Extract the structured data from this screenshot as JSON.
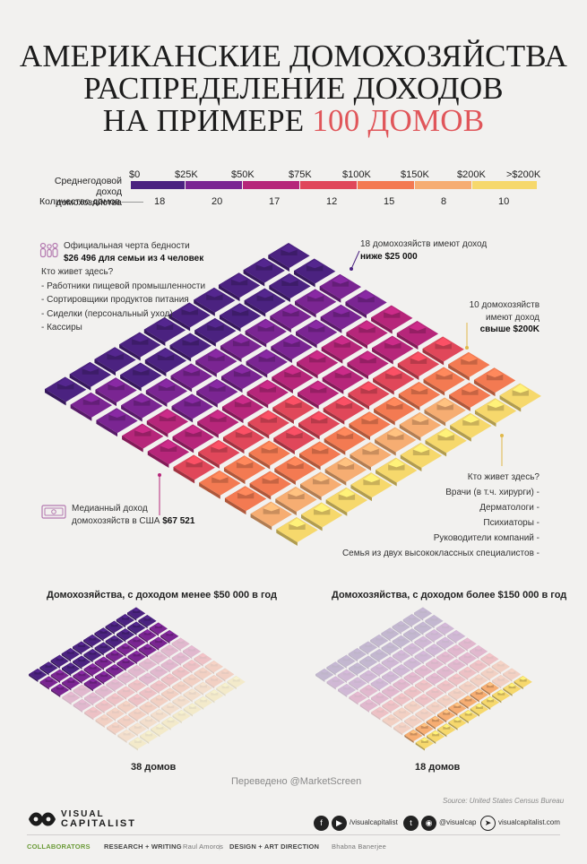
{
  "title": {
    "line1": "АМЕРИКАНСКИЕ ДОМОХОЗЯЙСТВА",
    "line2": "РАСПРЕДЕЛЕНИЕ ДОХОДОВ",
    "line3_prefix": "НА ПРИМЕРЕ",
    "line3_accent": "100 ДОМОВ"
  },
  "legend": {
    "income_label_1": "Среднегодовой доход",
    "income_label_2": "домохозяйства",
    "count_label": "Количество домов",
    "ticks": [
      "$0",
      "$25K",
      "$50K",
      "$75K",
      "$100K",
      "$150K",
      "$200K",
      ">$200K"
    ],
    "counts": [
      "18",
      "20",
      "17",
      "12",
      "15",
      "8",
      "10"
    ],
    "colors": [
      "#4b2280",
      "#7a2592",
      "#b6267a",
      "#e0475a",
      "#f37a52",
      "#f6ad72",
      "#f6d86c"
    ]
  },
  "chart_data": {
    "type": "table",
    "categories": [
      "$0–$25K",
      "$25K–$50K",
      "$50K–$75K",
      "$75K–$100K",
      "$100K–$150K",
      "$150K–$200K",
      ">$200K"
    ],
    "values": [
      18,
      20,
      17,
      12,
      15,
      8,
      10
    ]
  },
  "notes": {
    "poverty_line": "Официальная черта бедности",
    "poverty_value": "$26 496 для семьи из 4 человек",
    "who_low_title": "Кто живет здесь?",
    "who_low": [
      "- Работники пищевой промышленности",
      "- Сортировщики продуктов питания",
      "- Сиделки (персональный уход)",
      "- Кассиры"
    ],
    "below25_text": "18 домохозяйств имеют доход",
    "below25_bold": "ниже $25 000",
    "above200_text_1": "10 домохозяйств",
    "above200_text_2": "имеют доход",
    "above200_bold": "свыше $200K",
    "who_high_title": "Кто живет здесь?",
    "who_high": [
      "Врачи (в т.ч. хирурги) -",
      "Дерматологи -",
      "Психиаторы -",
      "Руководители компаний -",
      "Семья из двух высококлассных специалистов -"
    ],
    "median_1": "Медианный доход",
    "median_2": "домохозяйств в США",
    "median_value": "$67 521"
  },
  "bottom": {
    "left_title": "Домохозяйства, с доходом менее $50 000 в год",
    "right_title": "Домохозяйства, с доходом более $150 000 в год",
    "left_caption": "38 домов",
    "right_caption": "18 домов",
    "translated": "Переведено @MarketScreen",
    "source": "Source: United States Census Bureau"
  },
  "footer": {
    "brand_1": "VISUAL",
    "brand_2": "CAPITALIST",
    "fb_handle": "/visualcapitalist",
    "tw_handle": "@visualcap",
    "web": "visualcapitalist.com",
    "collaborators": "COLLABORATORS",
    "research_label": "RESEARCH + WRITING",
    "research_name": "Raul Amoros",
    "design_label": "DESIGN + ART DIRECTION",
    "design_name": "Bhabna Banerjee"
  },
  "icons": [
    "family-icon",
    "cash-icon",
    "facebook-icon",
    "youtube-icon",
    "twitter-icon",
    "instagram-icon",
    "cursor-icon",
    "visual-capitalist-logo"
  ]
}
